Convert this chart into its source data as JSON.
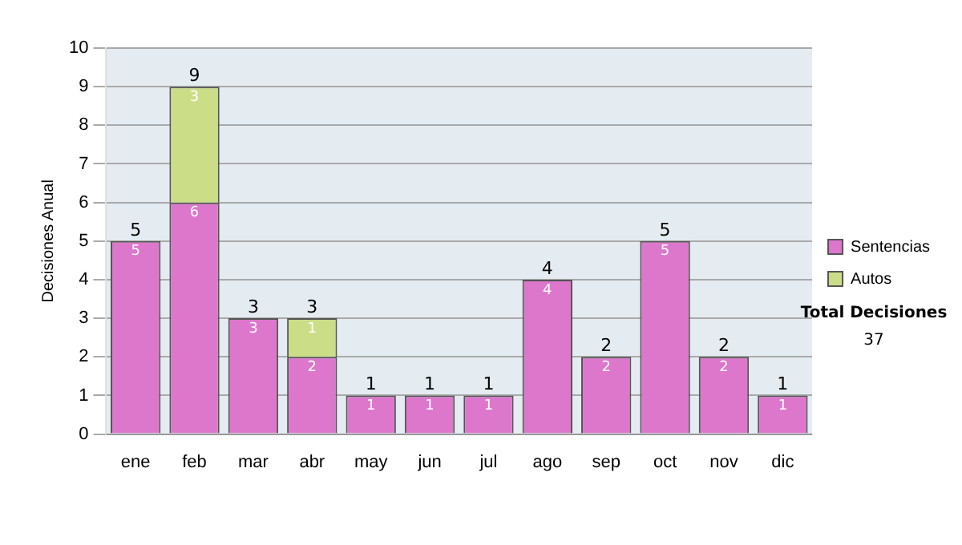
{
  "chart_data": {
    "type": "bar",
    "stacked": true,
    "ylabel": "Decisiones Anual",
    "categories": [
      "ene",
      "feb",
      "mar",
      "abr",
      "may",
      "jun",
      "jul",
      "ago",
      "sep",
      "oct",
      "nov",
      "dic"
    ],
    "series": [
      {
        "name": "Sentencias",
        "color": "#dd77cc",
        "values": [
          5,
          6,
          3,
          2,
          1,
          1,
          1,
          4,
          2,
          5,
          2,
          1
        ]
      },
      {
        "name": "Autos",
        "color": "#ccdd88",
        "values": [
          null,
          3,
          null,
          1,
          null,
          null,
          null,
          null,
          null,
          null,
          null,
          null
        ]
      }
    ],
    "ylim": [
      0,
      10
    ],
    "yticks": [
      0,
      1,
      2,
      3,
      4,
      5,
      6,
      7,
      8,
      9,
      10
    ],
    "grid": "y",
    "legend": "right",
    "data_labels": true,
    "totals": [
      "5",
      "9",
      "3",
      "3",
      "1",
      "1",
      "1",
      "4",
      "2",
      "5",
      "2",
      "1"
    ],
    "annotations": [
      "Total Decisiones",
      "37"
    ]
  }
}
